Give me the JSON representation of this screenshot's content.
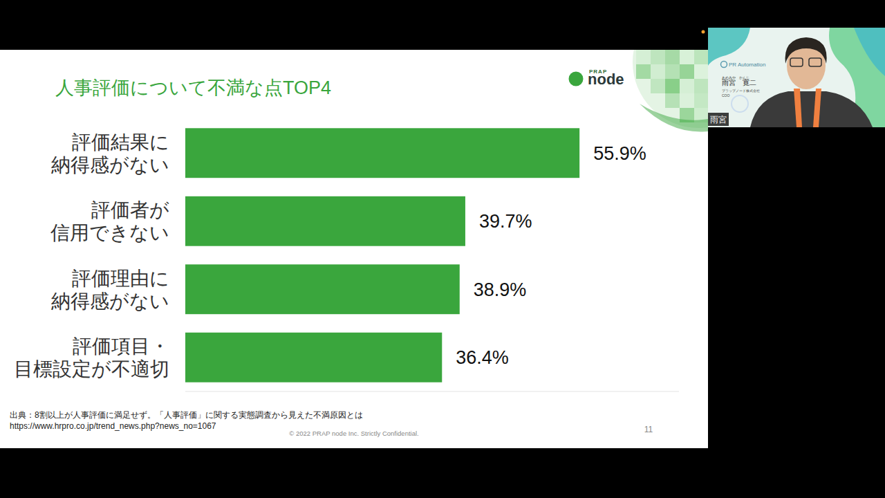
{
  "chart_data": {
    "type": "bar",
    "orientation": "horizontal",
    "title": "人事評価について不満な点TOP4",
    "categories": [
      "評価結果に\n納得感がない",
      "評価者が\n信用できない",
      "評価理由に\n納得感がない",
      "評価項目・\n目標設定が不適切"
    ],
    "values": [
      55.9,
      39.7,
      38.9,
      36.4
    ],
    "value_labels": [
      "55.9%",
      "39.7%",
      "38.9%",
      "36.4%"
    ],
    "color": "#3aa63d",
    "xlim": [
      0,
      70
    ],
    "data_labels": true,
    "tick_labels": "y",
    "grid": false
  },
  "slide": {
    "logo_top": "PRAP",
    "logo_main": "node",
    "source": [
      "出典：8割以上が人事評価に満足せず。「人事評価」に関する実態調査から見えた不満原因とは",
      "https://www.hrpro.co.jp/trend_news.php?news_no=1067"
    ],
    "copyright": "© 2022 PRAP node Inc. Strictly Confidential.",
    "page": "11"
  },
  "webcam": {
    "brand": "PR Automation",
    "ruby": "あめみや　かんじ",
    "name": "雨宮　寛二",
    "company": "プラップノード株式会社",
    "role": "COO",
    "label": "雨宮"
  }
}
